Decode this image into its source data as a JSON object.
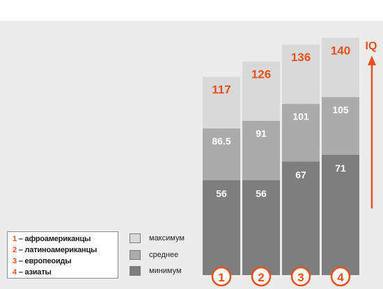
{
  "chart_data": {
    "type": "bar",
    "stacked_overlay": true,
    "categories": [
      "1",
      "2",
      "3",
      "4"
    ],
    "series": [
      {
        "name": "максимум",
        "values": [
          117,
          126,
          136,
          140
        ],
        "color": "#d9d9d9"
      },
      {
        "name": "среднее",
        "values": [
          86.5,
          91,
          101,
          105
        ],
        "color": "#ababab"
      },
      {
        "name": "минимум",
        "values": [
          56,
          56,
          67,
          71
        ],
        "color": "#7e7e7e"
      }
    ],
    "value_labels": {
      "max": [
        "117",
        "126",
        "136",
        "140"
      ],
      "avg": [
        "86.5",
        "91",
        "101",
        "105"
      ],
      "min": [
        "56",
        "56",
        "67",
        "71"
      ]
    },
    "ylabel": "IQ",
    "axis_visible": false,
    "accent_color": "#e8501c",
    "group_legend": [
      {
        "num": "1",
        "label": " – афроамериканцы"
      },
      {
        "num": "2",
        "label": " – латиноамериканцы"
      },
      {
        "num": "3",
        "label": " – европеоиды"
      },
      {
        "num": "4",
        "label": " – азиаты"
      }
    ],
    "series_legend": [
      "максимум",
      "среднее",
      "минимум"
    ]
  }
}
